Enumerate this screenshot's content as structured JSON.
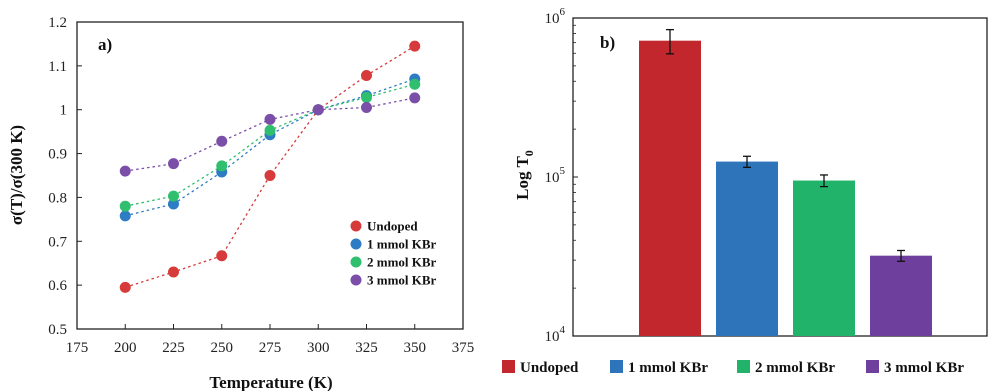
{
  "chart_data": [
    {
      "type": "scatter",
      "panel_label": "a)",
      "xlabel": "Temperature (K)",
      "ylabel": "σ(T)/σ(300 K)",
      "xlim": [
        175,
        375
      ],
      "ylim": [
        0.5,
        1.2
      ],
      "x_ticks": [
        "175",
        "200",
        "225",
        "250",
        "275",
        "300",
        "325",
        "350",
        "375"
      ],
      "y_ticks": [
        "0.5",
        "0.6",
        "0.7",
        "0.8",
        "0.9",
        "1",
        "1.1",
        "1.2"
      ],
      "grid": false,
      "legend_position": "bottom-right",
      "lines": "dotted",
      "x": [
        200,
        225,
        250,
        275,
        300,
        325,
        350
      ],
      "series": [
        {
          "name": "Undoped",
          "color": "#d63a3a",
          "values": [
            0.595,
            0.63,
            0.667,
            0.85,
            1.0,
            1.078,
            1.145
          ]
        },
        {
          "name": "1 mmol KBr",
          "color": "#2d7cc4",
          "values": [
            0.758,
            0.785,
            0.858,
            0.943,
            1.0,
            1.032,
            1.07
          ]
        },
        {
          "name": "2 mmol KBr",
          "color": "#2fbf6e",
          "values": [
            0.78,
            0.803,
            0.872,
            0.953,
            1.0,
            1.028,
            1.058
          ]
        },
        {
          "name": "3 mmol KBr",
          "color": "#7b4fa8",
          "values": [
            0.86,
            0.877,
            0.928,
            0.978,
            1.0,
            1.005,
            1.027
          ]
        }
      ]
    },
    {
      "type": "bar",
      "panel_label": "b)",
      "ylabel_base": "Log T",
      "ylabel_sub": "0",
      "yscale": "log",
      "ylim": [
        10000,
        1000000
      ],
      "y_ticks": [
        {
          "base": "10",
          "exp": "4",
          "value": 10000
        },
        {
          "base": "10",
          "exp": "5",
          "value": 100000
        },
        {
          "base": "10",
          "exp": "6",
          "value": 1000000
        }
      ],
      "legend_position": "bottom",
      "categories": [
        "Undoped",
        "1 mmol KBr",
        "2 mmol KBr",
        "3 mmol KBr"
      ],
      "values": [
        720000,
        125000,
        95000,
        32000
      ],
      "errors": [
        125000,
        10000,
        8000,
        2500
      ],
      "colors": [
        "#c1272d",
        "#2d74bb",
        "#22b36a",
        "#6e3f9c"
      ]
    }
  ]
}
